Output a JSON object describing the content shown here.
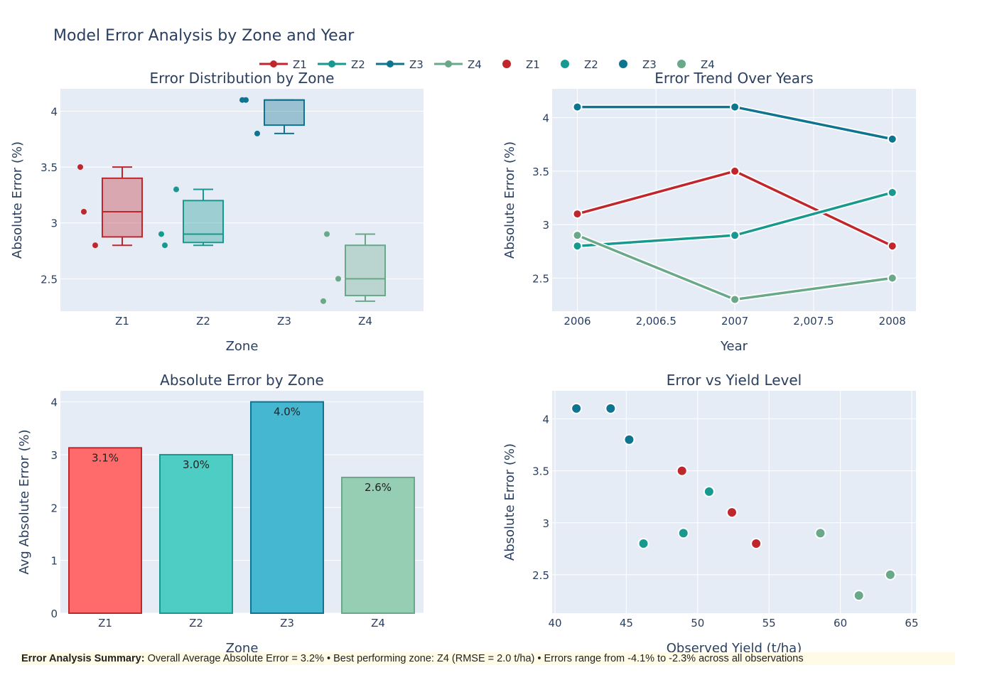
{
  "title": "Model Error Analysis by Zone and Year",
  "colors": {
    "Z1": "#c0272d",
    "Z2": "#17998f",
    "Z3": "#0e7490",
    "Z4": "#6aa88a"
  },
  "bar_colors": {
    "Z1": "#ff6b6b",
    "Z2": "#4ecdc4",
    "Z3": "#45b7d1",
    "Z4": "#96ceb4"
  },
  "legend": {
    "lines": [
      "Z1",
      "Z2",
      "Z3",
      "Z4"
    ],
    "markers": [
      "Z1",
      "Z2",
      "Z3",
      "Z4"
    ]
  },
  "summary": {
    "label": "Error Analysis Summary:",
    "text": " Overall Average Absolute Error = 3.2% • Best performing zone: Z4 (RMSE = 2.0 t/ha) • Errors range from -4.1% to -2.3% across all observations"
  },
  "chart_data": [
    {
      "type": "box",
      "title": "Error Distribution by Zone",
      "xlabel": "Zone",
      "ylabel": "Absolute Error (%)",
      "categories": [
        "Z1",
        "Z2",
        "Z3",
        "Z4"
      ],
      "series": {
        "Z1": [
          3.1,
          3.5,
          2.8
        ],
        "Z2": [
          2.8,
          2.9,
          3.3
        ],
        "Z3": [
          4.1,
          4.1,
          3.8
        ],
        "Z4": [
          2.9,
          2.3,
          2.5
        ]
      },
      "ylim": [
        2.21,
        4.2
      ],
      "yticks": [
        2.5,
        3,
        3.5,
        4
      ],
      "ytick_labels": [
        "2.5",
        "3",
        "3.5",
        "4"
      ]
    },
    {
      "type": "line",
      "title": "Error Trend Over Years",
      "xlabel": "Year",
      "ylabel": "Absolute Error (%)",
      "x": [
        2006,
        2007,
        2008
      ],
      "series": [
        {
          "name": "Z1",
          "values": [
            3.1,
            3.5,
            2.8
          ]
        },
        {
          "name": "Z2",
          "values": [
            2.8,
            2.9,
            3.3
          ]
        },
        {
          "name": "Z3",
          "values": [
            4.1,
            4.1,
            3.8
          ]
        },
        {
          "name": "Z4",
          "values": [
            2.9,
            2.3,
            2.5
          ]
        }
      ],
      "xlim": [
        2005.84,
        2008.15
      ],
      "xticks": [
        2006,
        2006.5,
        2007,
        2007.5,
        2008
      ],
      "xtick_labels": [
        "2006",
        "2,006.5",
        "2007",
        "2,007.5",
        "2008"
      ],
      "ylim": [
        2.19,
        4.27
      ],
      "yticks": [
        2.5,
        3,
        3.5,
        4
      ],
      "ytick_labels": [
        "2.5",
        "3",
        "3.5",
        "4"
      ]
    },
    {
      "type": "bar",
      "title": "Absolute Error by Zone",
      "xlabel": "Zone",
      "ylabel": "Avg Absolute Error (%)",
      "categories": [
        "Z1",
        "Z2",
        "Z3",
        "Z4"
      ],
      "values": [
        3.13,
        3.0,
        4.0,
        2.57
      ],
      "labels": [
        "3.1%",
        "3.0%",
        "4.0%",
        "2.6%"
      ],
      "ylim": [
        0,
        4.21
      ],
      "yticks": [
        0,
        1,
        2,
        3,
        4
      ],
      "ytick_labels": [
        "0",
        "1",
        "2",
        "3",
        "4"
      ]
    },
    {
      "type": "scatter",
      "title": "Error vs Yield Level",
      "xlabel": "Observed Yield (t/ha)",
      "ylabel": "Absolute Error (%)",
      "series": [
        {
          "name": "Z1",
          "x": [
            48.9,
            52.4,
            54.1
          ],
          "y": [
            3.5,
            3.1,
            2.8
          ]
        },
        {
          "name": "Z2",
          "x": [
            46.2,
            49.0,
            50.8
          ],
          "y": [
            2.8,
            2.9,
            3.3
          ]
        },
        {
          "name": "Z3",
          "x": [
            41.5,
            43.9,
            45.2
          ],
          "y": [
            4.1,
            4.1,
            3.8
          ]
        },
        {
          "name": "Z4",
          "x": [
            58.6,
            61.3,
            63.5
          ],
          "y": [
            2.9,
            2.3,
            2.5
          ]
        }
      ],
      "xlim": [
        39.8,
        65.3
      ],
      "xticks": [
        40,
        45,
        50,
        55,
        60,
        65
      ],
      "xtick_labels": [
        "40",
        "45",
        "50",
        "55",
        "60",
        "65"
      ],
      "ylim": [
        2.13,
        4.27
      ],
      "yticks": [
        2.5,
        3,
        3.5,
        4
      ],
      "ytick_labels": [
        "2.5",
        "3",
        "3.5",
        "4"
      ]
    }
  ]
}
